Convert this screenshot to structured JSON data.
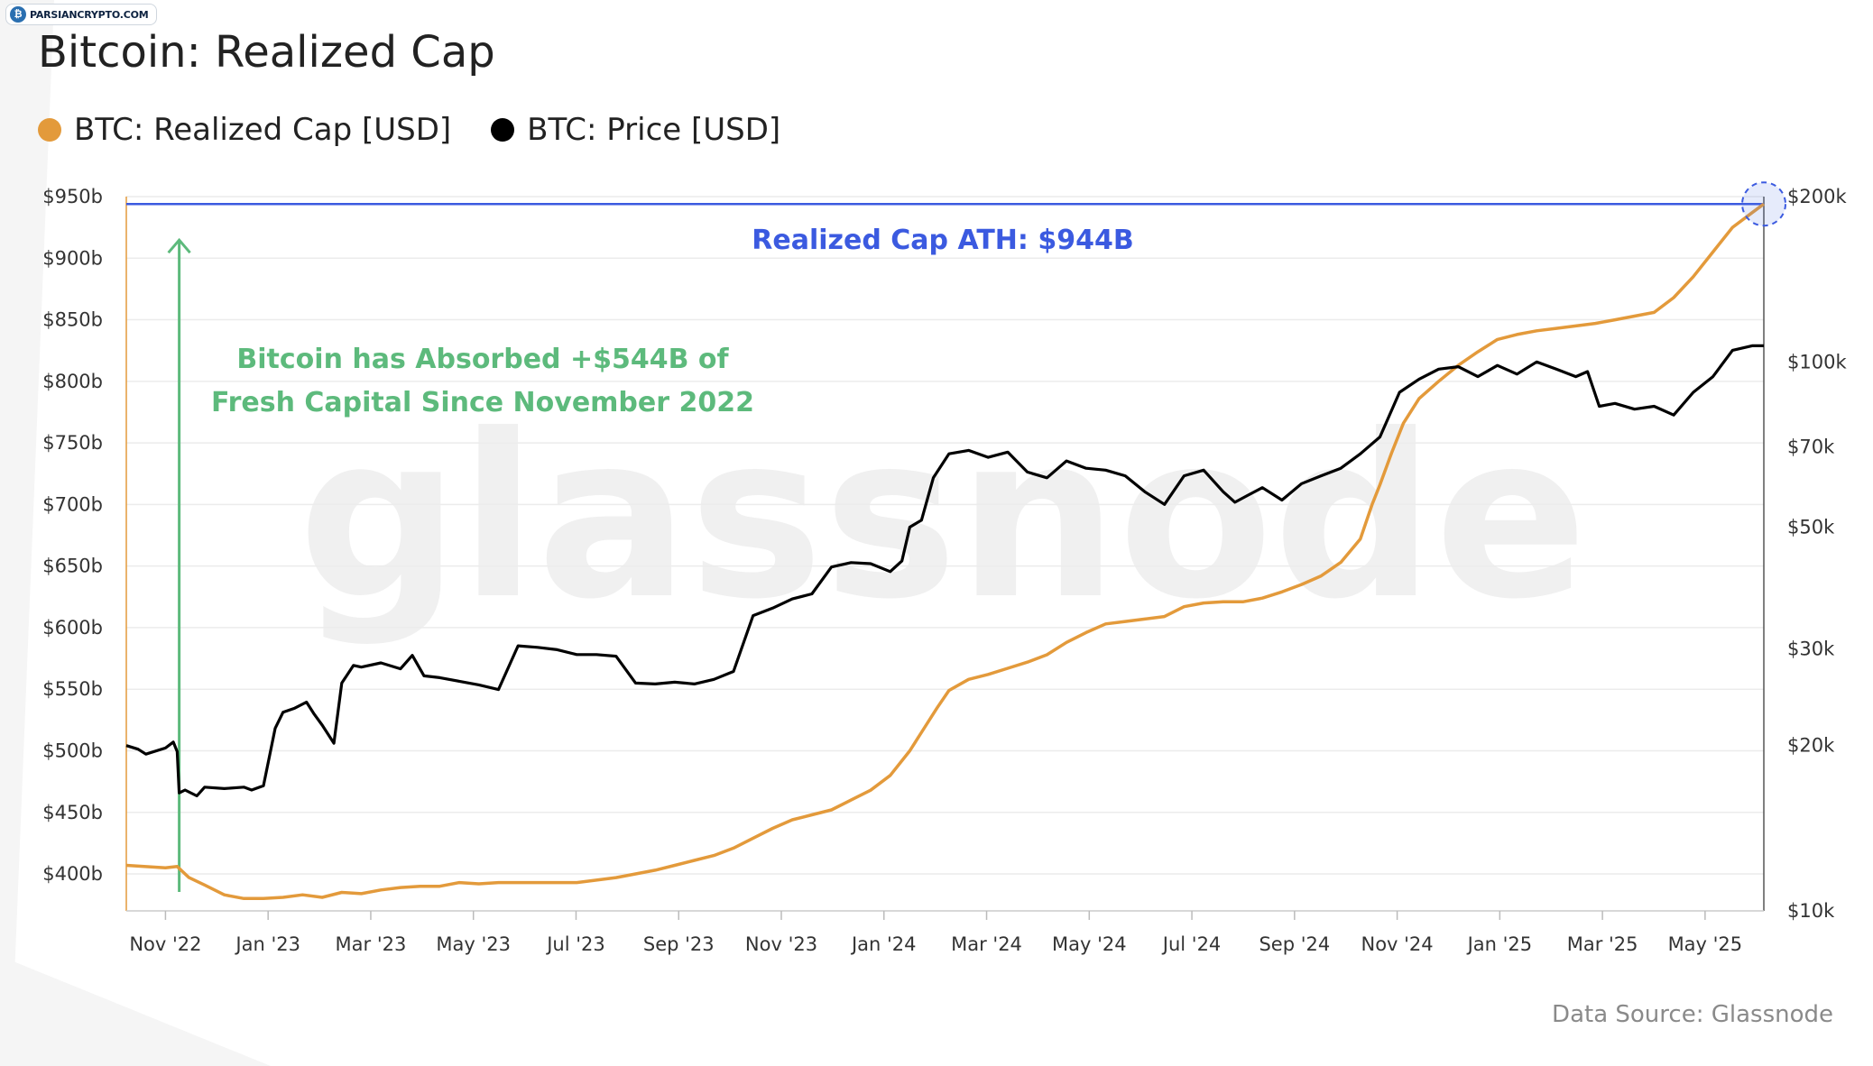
{
  "watermark_logo": "PARSIANCRYPTO.COM",
  "title": "Bitcoin: Realized Cap",
  "legend": [
    {
      "label": "BTC: Realized Cap [USD]",
      "color": "#e39a3b"
    },
    {
      "label": "BTC: Price [USD]",
      "color": "#000000"
    }
  ],
  "source": "Data Source: Glassnode",
  "chart_data": {
    "type": "line",
    "watermark": "glassnode",
    "x_labels": [
      "Nov '22",
      "Jan '23",
      "Mar '23",
      "May '23",
      "Jul '23",
      "Sep '23",
      "Nov '23",
      "Jan '24",
      "Mar '24",
      "May '24",
      "Jul '24",
      "Sep '24",
      "Nov '24",
      "Jan '25",
      "Mar '25",
      "May '25"
    ],
    "x_range": [
      "2022-10-01",
      "2025-06-22"
    ],
    "y_left": {
      "ticks": [
        "$400b",
        "$450b",
        "$500b",
        "$550b",
        "$600b",
        "$650b",
        "$700b",
        "$750b",
        "$800b",
        "$850b",
        "$900b",
        "$950b"
      ],
      "range": [
        370,
        950
      ],
      "unit": "billion USD"
    },
    "y_right": {
      "ticks": [
        "$10k",
        "$20k",
        "$30k",
        "$50k",
        "$70k",
        "$100k",
        "$200k"
      ],
      "tick_values": [
        10000,
        20000,
        30000,
        50000,
        70000,
        100000,
        200000
      ],
      "range": [
        10000,
        200000
      ],
      "scale": "log"
    },
    "annotations": {
      "ath_label": "Realized Cap ATH: $944B",
      "ath_value": 944,
      "growth_text_line1": "Bitcoin has Absorbed +$544B of",
      "growth_text_line2": "Fresh Capital Since November 2022",
      "arrow_from": 400,
      "arrow_to": 944
    },
    "series": [
      {
        "name": "BTC: Realized Cap [USD]",
        "axis": "left",
        "color": "#e39a3b",
        "points": [
          [
            0,
            407
          ],
          [
            1,
            405
          ],
          [
            1.3,
            406
          ],
          [
            1.6,
            397
          ],
          [
            2,
            391
          ],
          [
            2.5,
            383
          ],
          [
            3,
            380
          ],
          [
            3.5,
            380
          ],
          [
            4,
            381
          ],
          [
            4.5,
            383
          ],
          [
            5,
            381
          ],
          [
            5.5,
            385
          ],
          [
            6,
            384
          ],
          [
            6.5,
            387
          ],
          [
            7,
            389
          ],
          [
            7.5,
            390
          ],
          [
            8,
            390
          ],
          [
            8.5,
            393
          ],
          [
            9,
            392
          ],
          [
            9.5,
            393
          ],
          [
            10,
            393
          ],
          [
            10.5,
            393
          ],
          [
            11,
            393
          ],
          [
            11.5,
            393
          ],
          [
            12,
            395
          ],
          [
            12.5,
            397
          ],
          [
            13,
            400
          ],
          [
            13.5,
            403
          ],
          [
            14,
            407
          ],
          [
            14.5,
            411
          ],
          [
            15,
            415
          ],
          [
            15.5,
            421
          ],
          [
            16,
            429
          ],
          [
            16.5,
            437
          ],
          [
            17,
            444
          ],
          [
            17.5,
            448
          ],
          [
            18,
            452
          ],
          [
            18.5,
            460
          ],
          [
            19,
            468
          ],
          [
            19.5,
            480
          ],
          [
            20,
            500
          ],
          [
            20.3,
            515
          ],
          [
            20.7,
            535
          ],
          [
            21,
            549
          ],
          [
            21.5,
            558
          ],
          [
            22,
            562
          ],
          [
            22.5,
            567
          ],
          [
            23,
            572
          ],
          [
            23.5,
            578
          ],
          [
            24,
            588
          ],
          [
            24.5,
            596
          ],
          [
            25,
            603
          ],
          [
            25.5,
            605
          ],
          [
            26,
            607
          ],
          [
            26.5,
            609
          ],
          [
            27,
            617
          ],
          [
            27.5,
            620
          ],
          [
            28,
            621
          ],
          [
            28.5,
            621
          ],
          [
            29,
            624
          ],
          [
            29.5,
            629
          ],
          [
            30,
            635
          ],
          [
            30.5,
            642
          ],
          [
            31,
            653
          ],
          [
            31.5,
            672
          ],
          [
            31.8,
            700
          ],
          [
            32,
            716
          ],
          [
            32.3,
            742
          ],
          [
            32.6,
            766
          ],
          [
            33,
            786
          ],
          [
            33.5,
            800
          ],
          [
            34,
            813
          ],
          [
            34.5,
            824
          ],
          [
            35,
            834
          ],
          [
            35.5,
            838
          ],
          [
            36,
            841
          ],
          [
            36.5,
            843
          ],
          [
            37,
            845
          ],
          [
            37.5,
            847
          ],
          [
            38,
            850
          ],
          [
            38.5,
            853
          ],
          [
            39,
            856
          ],
          [
            39.5,
            868
          ],
          [
            40,
            885
          ],
          [
            40.5,
            905
          ],
          [
            41,
            925
          ],
          [
            41.5,
            937
          ],
          [
            41.8,
            944
          ]
        ]
      },
      {
        "name": "BTC: Price [USD]",
        "axis": "right",
        "color": "#000000",
        "points": [
          [
            0,
            20000
          ],
          [
            0.3,
            19700
          ],
          [
            0.5,
            19300
          ],
          [
            1,
            19800
          ],
          [
            1.2,
            20300
          ],
          [
            1.3,
            19500
          ],
          [
            1.35,
            16400
          ],
          [
            1.5,
            16600
          ],
          [
            1.8,
            16200
          ],
          [
            2,
            16800
          ],
          [
            2.5,
            16700
          ],
          [
            3,
            16800
          ],
          [
            3.2,
            16600
          ],
          [
            3.5,
            16900
          ],
          [
            3.8,
            21500
          ],
          [
            4,
            23000
          ],
          [
            4.3,
            23400
          ],
          [
            4.6,
            24000
          ],
          [
            4.8,
            22800
          ],
          [
            5,
            21800
          ],
          [
            5.3,
            20200
          ],
          [
            5.5,
            26000
          ],
          [
            5.8,
            28000
          ],
          [
            6,
            27800
          ],
          [
            6.5,
            28300
          ],
          [
            7,
            27600
          ],
          [
            7.3,
            29200
          ],
          [
            7.6,
            26800
          ],
          [
            8,
            26600
          ],
          [
            8.5,
            26200
          ],
          [
            9,
            25800
          ],
          [
            9.5,
            25300
          ],
          [
            10,
            30400
          ],
          [
            10.5,
            30200
          ],
          [
            11,
            29900
          ],
          [
            11.5,
            29300
          ],
          [
            12,
            29300
          ],
          [
            12.5,
            29100
          ],
          [
            13,
            26000
          ],
          [
            13.5,
            25900
          ],
          [
            14,
            26100
          ],
          [
            14.5,
            25900
          ],
          [
            15,
            26400
          ],
          [
            15.5,
            27300
          ],
          [
            16,
            34500
          ],
          [
            16.5,
            35600
          ],
          [
            17,
            37000
          ],
          [
            17.5,
            37800
          ],
          [
            18,
            42300
          ],
          [
            18.5,
            43100
          ],
          [
            19,
            42900
          ],
          [
            19.5,
            41500
          ],
          [
            19.8,
            43400
          ],
          [
            20,
            50000
          ],
          [
            20.3,
            51500
          ],
          [
            20.6,
            61500
          ],
          [
            21,
            68000
          ],
          [
            21.5,
            69000
          ],
          [
            22,
            67000
          ],
          [
            22.5,
            68500
          ],
          [
            23,
            63000
          ],
          [
            23.5,
            61500
          ],
          [
            24,
            66000
          ],
          [
            24.5,
            64000
          ],
          [
            25,
            63500
          ],
          [
            25.5,
            62000
          ],
          [
            26,
            58000
          ],
          [
            26.5,
            55000
          ],
          [
            27,
            62000
          ],
          [
            27.5,
            63500
          ],
          [
            28,
            58000
          ],
          [
            28.3,
            55500
          ],
          [
            28.6,
            57000
          ],
          [
            29,
            59000
          ],
          [
            29.5,
            56000
          ],
          [
            30,
            60000
          ],
          [
            30.5,
            62000
          ],
          [
            31,
            64000
          ],
          [
            31.5,
            68000
          ],
          [
            32,
            73000
          ],
          [
            32.5,
            88000
          ],
          [
            33,
            93000
          ],
          [
            33.5,
            97000
          ],
          [
            34,
            98000
          ],
          [
            34.5,
            94000
          ],
          [
            35,
            98500
          ],
          [
            35.5,
            95000
          ],
          [
            36,
            100000
          ],
          [
            36.5,
            97000
          ],
          [
            37,
            94000
          ],
          [
            37.3,
            96000
          ],
          [
            37.6,
            83000
          ],
          [
            38,
            84000
          ],
          [
            38.5,
            82000
          ],
          [
            39,
            83000
          ],
          [
            39.5,
            80000
          ],
          [
            40,
            88000
          ],
          [
            40.5,
            94000
          ],
          [
            41,
            105000
          ],
          [
            41.5,
            107000
          ],
          [
            41.8,
            107000
          ]
        ]
      }
    ]
  }
}
